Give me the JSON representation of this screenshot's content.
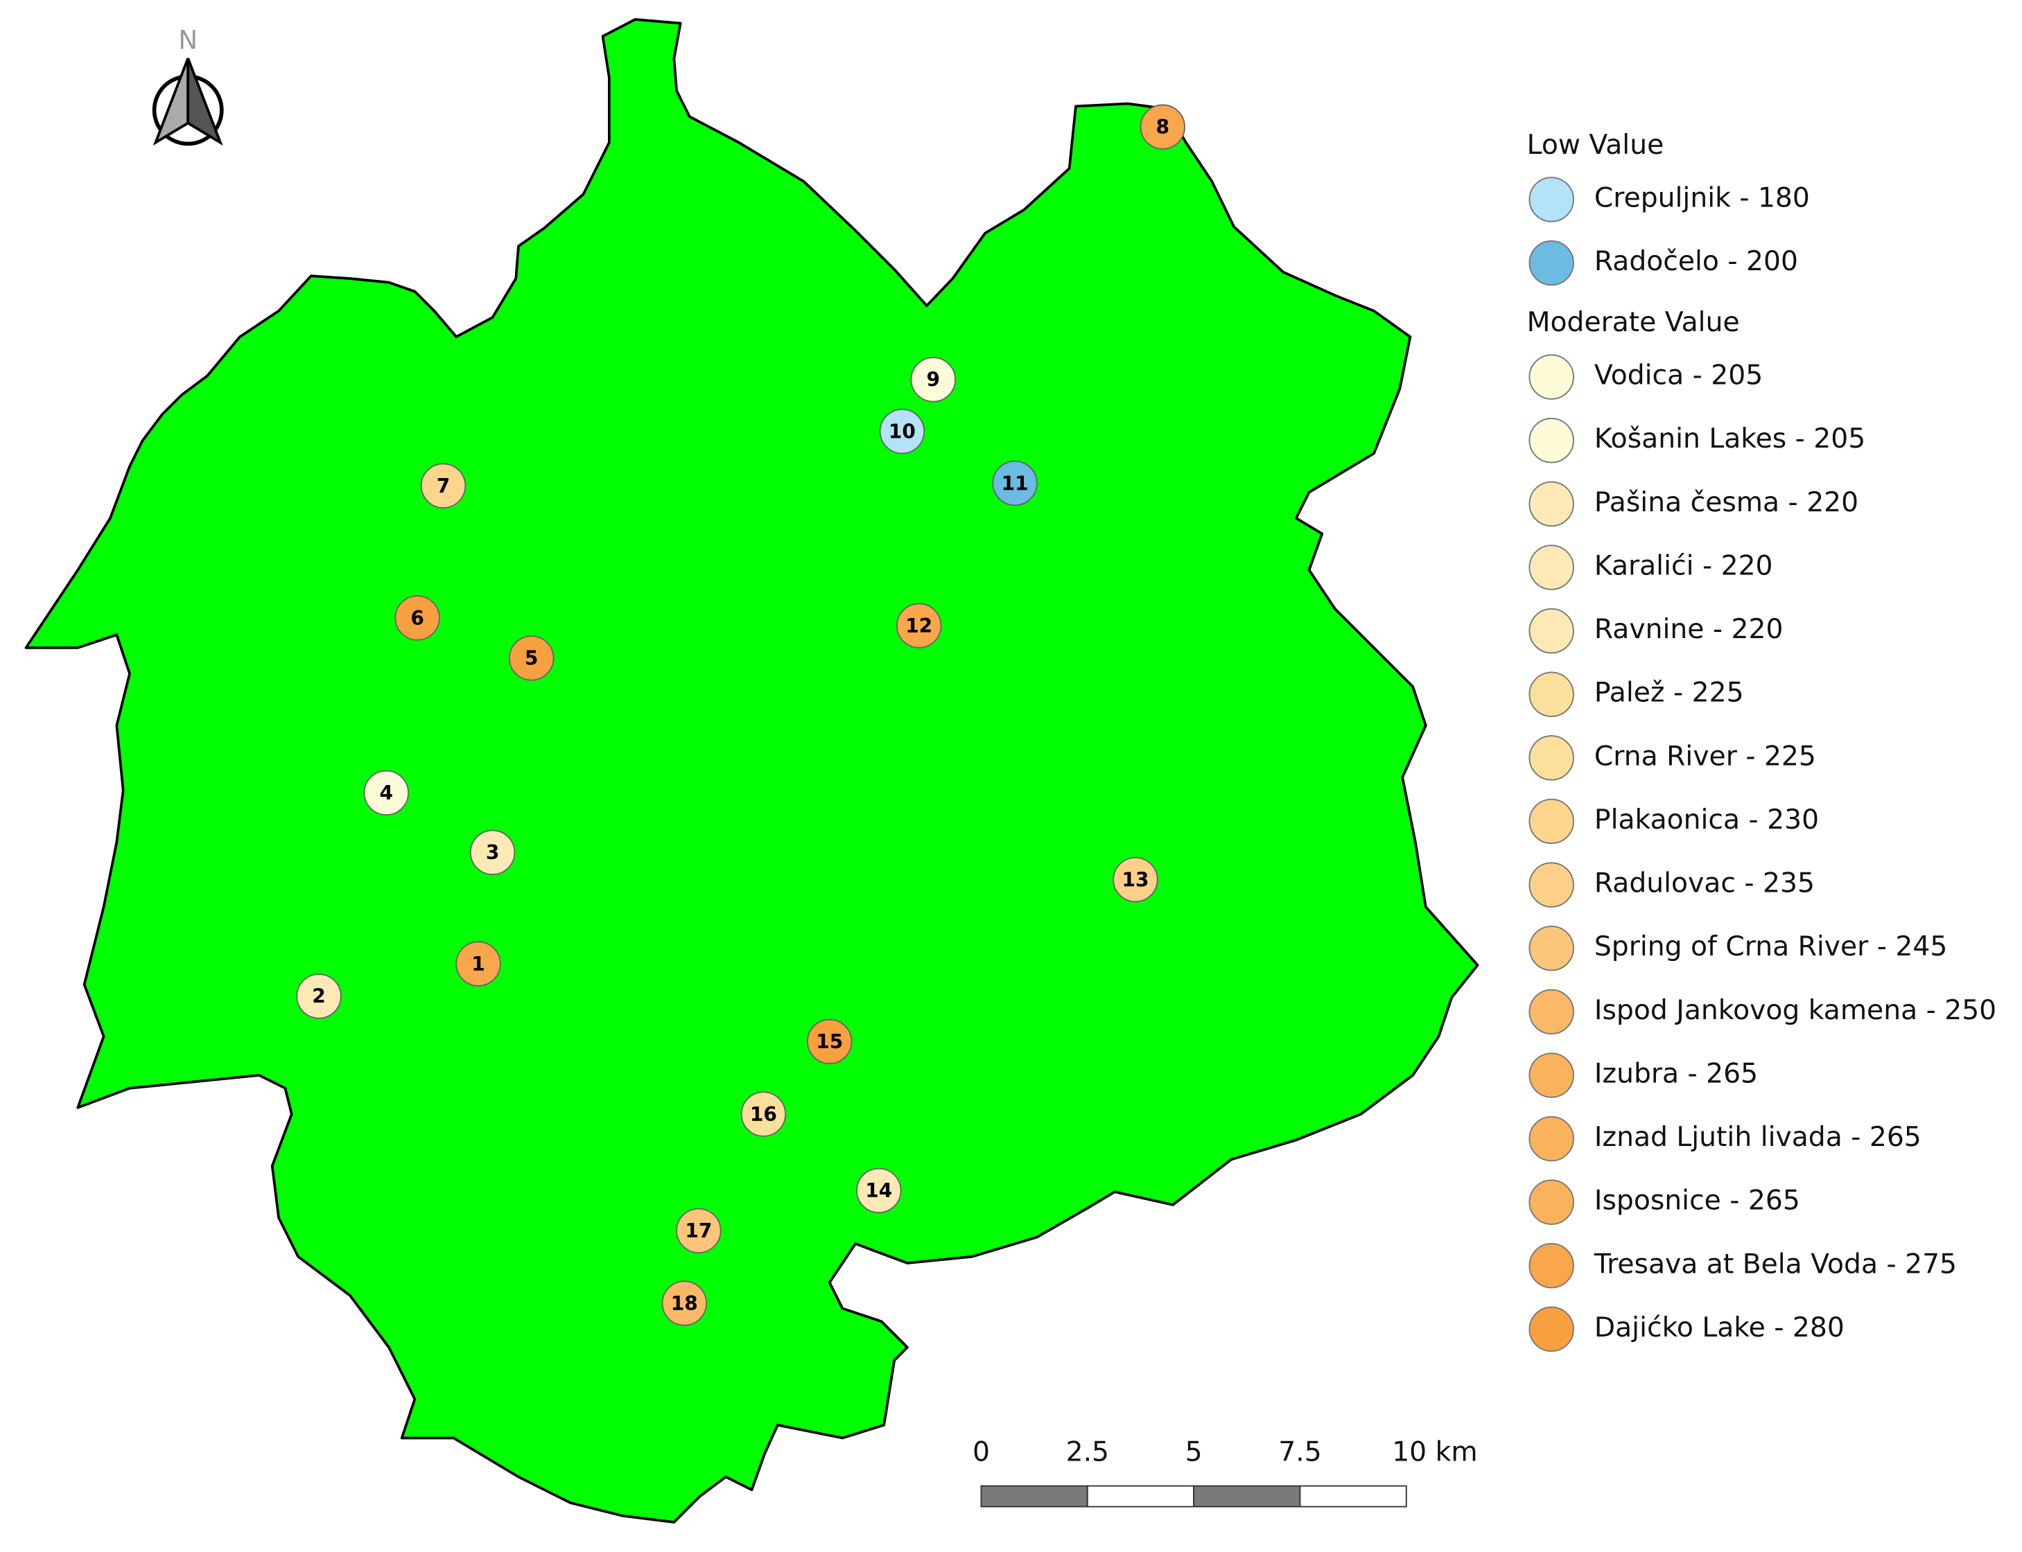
{
  "map": {
    "north_label": "N",
    "points": [
      {
        "label": "1",
        "color": "#f9a64c"
      },
      {
        "label": "2",
        "color": "#fde9b6"
      },
      {
        "label": "3",
        "color": "#fde9b6"
      },
      {
        "label": "4",
        "color": "#fefcd8"
      },
      {
        "label": "5",
        "color": "#f8a040"
      },
      {
        "label": "6",
        "color": "#f8a040"
      },
      {
        "label": "7",
        "color": "#fdd58d"
      },
      {
        "label": "8",
        "color": "#f9a64c"
      },
      {
        "label": "9",
        "color": "#fefcd8"
      },
      {
        "label": "10",
        "color": "#b3e3f8"
      },
      {
        "label": "11",
        "color": "#6bbbe3"
      },
      {
        "label": "12",
        "color": "#f9a64c"
      },
      {
        "label": "13",
        "color": "#fdd08a"
      },
      {
        "label": "14",
        "color": "#fde9b6"
      },
      {
        "label": "15",
        "color": "#f8a040"
      },
      {
        "label": "16",
        "color": "#fddf9c"
      },
      {
        "label": "17",
        "color": "#fcc57a"
      },
      {
        "label": "18",
        "color": "#fbb866"
      }
    ],
    "legend": {
      "groups": [
        {
          "title": "Low Value",
          "items": [
            {
              "label": "Crepuljnik - 180",
              "color": "#b3e3f8"
            },
            {
              "label": "Radočelo - 200",
              "color": "#6bbbe3"
            }
          ]
        },
        {
          "title": "Moderate Value",
          "items": [
            {
              "label": "Vodica - 205",
              "color": "#fefcd8"
            },
            {
              "label": "Košanin Lakes - 205",
              "color": "#fefcd8"
            },
            {
              "label": "Pašina česma - 220",
              "color": "#fde9b6"
            },
            {
              "label": "Karalići - 220",
              "color": "#fde9b6"
            },
            {
              "label": "Ravnine - 220",
              "color": "#fde9b6"
            },
            {
              "label": "Palež - 225",
              "color": "#fddf9c"
            },
            {
              "label": "Crna River - 225",
              "color": "#fddf9c"
            },
            {
              "label": "Plakaonica - 230",
              "color": "#fdd58d"
            },
            {
              "label": "Radulovac - 235",
              "color": "#fdd08a"
            },
            {
              "label": "Spring of Crna River - 245",
              "color": "#fcc57a"
            },
            {
              "label": "Ispod Jankovog kamena - 250",
              "color": "#fbb866"
            },
            {
              "label": "Izubra - 265",
              "color": "#fab35c"
            },
            {
              "label": "Iznad Ljutih livada - 265",
              "color": "#fab35c"
            },
            {
              "label": "Isposnice - 265",
              "color": "#fab35c"
            },
            {
              "label": "Tresava at Bela Voda - 275",
              "color": "#f9a64c"
            },
            {
              "label": "Dajićko Lake - 280",
              "color": "#f8a040"
            }
          ]
        }
      ]
    },
    "scale_bar": {
      "labels": [
        "0",
        "2.5",
        "5",
        "7.5",
        "10 km"
      ]
    }
  }
}
